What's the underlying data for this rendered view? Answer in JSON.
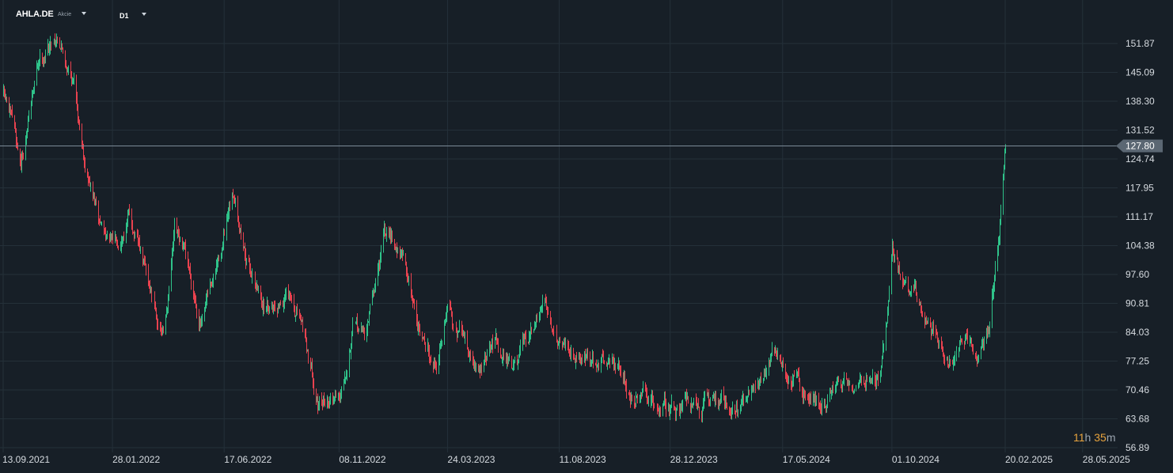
{
  "toolbar": {
    "symbol": "AHLA.DE",
    "symbol_type": "Akcie",
    "timeframe": "D1"
  },
  "countdown": {
    "hours": "11",
    "h_unit": "h",
    "minutes": "35",
    "m_unit": "m"
  },
  "colors": {
    "background": "#171f27",
    "grid": "#243039",
    "up": "#2fc38a",
    "down": "#e8424f",
    "price_line": "#7c8a97",
    "price_label_bg": "#5b6773",
    "axis_text": "#d6dbe0",
    "countdown_accent": "#e8a33d"
  },
  "chart_data": {
    "type": "candlestick",
    "timeframe": "D1",
    "last_price": 127.8,
    "y_axis": {
      "ylim": [
        56.89,
        158.5
      ],
      "ticks": [
        "151.87",
        "145.09",
        "138.30",
        "131.52",
        "124.74",
        "117.95",
        "111.17",
        "104.38",
        "97.60",
        "90.81",
        "84.03",
        "77.25",
        "70.46",
        "63.68",
        "56.89"
      ]
    },
    "x_axis": {
      "ticks": [
        "13.09.2021",
        "28.01.2022",
        "17.06.2022",
        "08.11.2022",
        "24.03.2023",
        "11.08.2023",
        "28.12.2023",
        "17.05.2024",
        "01.10.2024",
        "20.02.2025",
        "28.05.2025"
      ]
    },
    "last_data_label": "20.02.2025",
    "price_path": [
      [
        "13.09.2021",
        140
      ],
      [
        "05.10.2021",
        124
      ],
      [
        "28.10.2021",
        148
      ],
      [
        "20.11.2021",
        155
      ],
      [
        "10.12.2021",
        143
      ],
      [
        "24.12.2021",
        125
      ],
      [
        "10.01.2022",
        110
      ],
      [
        "28.01.2022",
        104
      ],
      [
        "18.02.2022",
        112
      ],
      [
        "10.03.2022",
        98
      ],
      [
        "01.04.2022",
        83
      ],
      [
        "15.04.2022",
        106
      ],
      [
        "05.05.2022",
        97
      ],
      [
        "20.05.2022",
        86
      ],
      [
        "03.06.2022",
        95
      ],
      [
        "17.06.2022",
        106
      ],
      [
        "01.07.2022",
        116
      ],
      [
        "15.07.2022",
        101
      ],
      [
        "05.08.2022",
        91
      ],
      [
        "01.09.2022",
        93
      ],
      [
        "25.09.2022",
        84
      ],
      [
        "15.10.2022",
        66
      ],
      [
        "08.11.2022",
        70
      ],
      [
        "25.11.2022",
        86
      ],
      [
        "10.12.2022",
        83
      ],
      [
        "01.01.2023",
        105
      ],
      [
        "12.01.2023",
        108
      ],
      [
        "01.02.2023",
        98
      ],
      [
        "20.02.2023",
        82
      ],
      [
        "10.03.2023",
        78
      ],
      [
        "24.03.2023",
        90
      ],
      [
        "10.04.2023",
        84
      ],
      [
        "01.05.2023",
        74
      ],
      [
        "25.05.2023",
        82
      ],
      [
        "20.06.2023",
        76
      ],
      [
        "11.07.2023",
        84
      ],
      [
        "25.07.2023",
        89
      ],
      [
        "11.08.2023",
        83
      ],
      [
        "01.09.2023",
        81
      ],
      [
        "25.09.2023",
        77
      ],
      [
        "15.10.2023",
        79
      ],
      [
        "05.11.2023",
        70
      ],
      [
        "28.11.2023",
        67
      ],
      [
        "28.12.2023",
        66
      ],
      [
        "20.01.2024",
        68
      ],
      [
        "10.02.2024",
        67
      ],
      [
        "01.03.2024",
        69
      ],
      [
        "01.04.2024",
        66
      ],
      [
        "17.04.2024",
        72
      ],
      [
        "05.05.2024",
        80
      ],
      [
        "25.05.2024",
        73
      ],
      [
        "15.06.2024",
        70
      ],
      [
        "10.07.2024",
        68
      ],
      [
        "01.08.2024",
        72
      ],
      [
        "25.08.2024",
        74
      ],
      [
        "15.09.2024",
        74
      ],
      [
        "25.09.2024",
        86
      ],
      [
        "01.10.2024",
        103
      ],
      [
        "15.10.2024",
        95
      ],
      [
        "01.11.2024",
        91
      ],
      [
        "25.11.2024",
        84
      ],
      [
        "10.12.2024",
        79
      ],
      [
        "01.01.2025",
        80
      ],
      [
        "20.01.2025",
        79
      ],
      [
        "31.01.2025",
        85
      ],
      [
        "05.02.2025",
        94
      ],
      [
        "12.02.2025",
        105
      ],
      [
        "20.02.2025",
        127.8
      ]
    ]
  }
}
